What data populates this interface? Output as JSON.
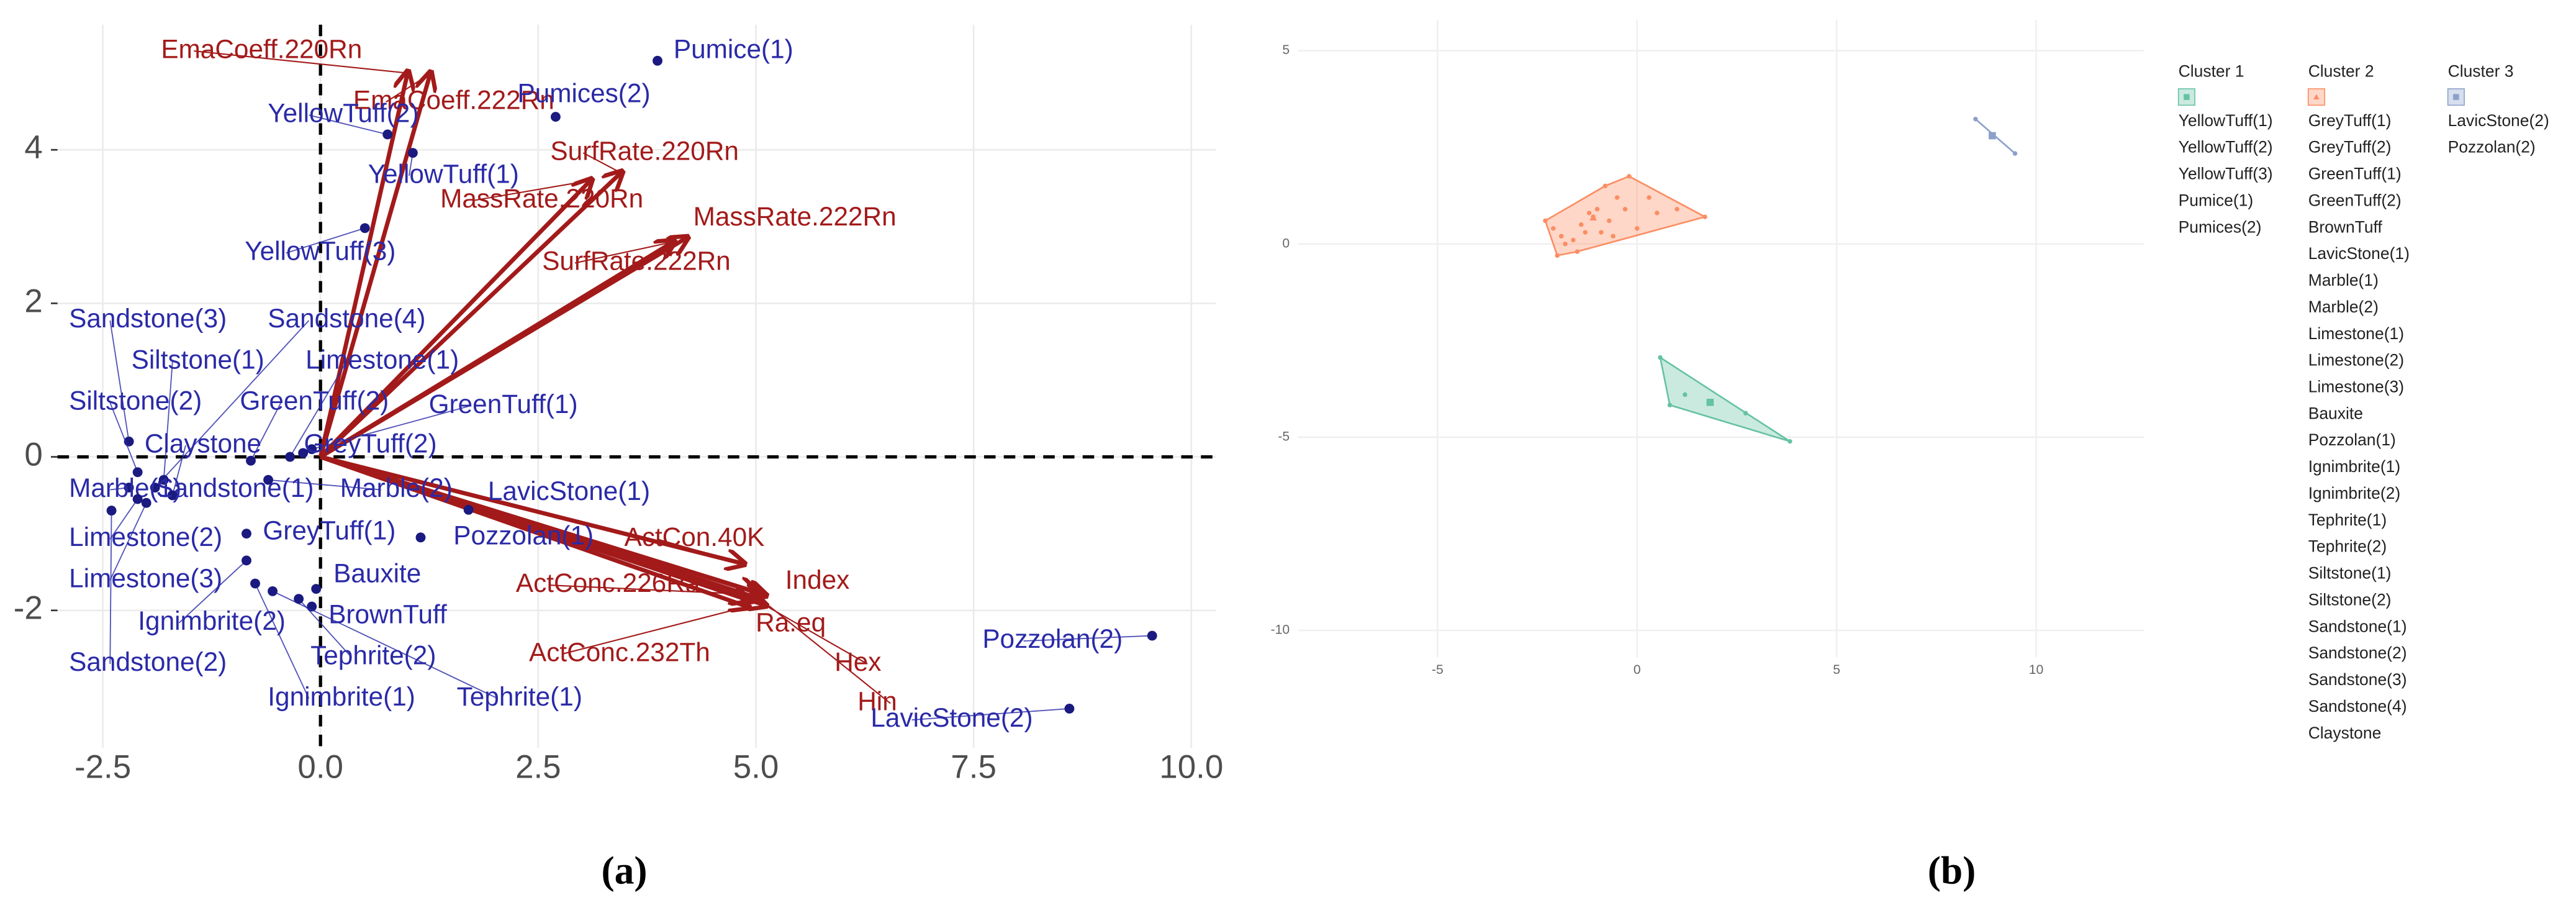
{
  "chart_data": [
    {
      "type": "biplot",
      "panel_label": "(a)",
      "xlim": [
        -3.02,
        10.28
      ],
      "ylim": [
        -3.79,
        5.63
      ],
      "xticks": [
        -2.5,
        {
          "value": 0,
          "label": "0.0"
        },
        2.5,
        {
          "value": 5,
          "label": "5.0"
        },
        7.5,
        {
          "value": 10,
          "label": "10.0"
        }
      ],
      "yticks": [
        -2,
        0,
        2,
        4
      ],
      "grid": true,
      "points": {
        "color": "#1a1a80",
        "label_color": "#2a2aa8",
        "names": [
          "Pumice(1)",
          "Pumices(2)",
          "YellowTuff(1)",
          "YellowTuff(2)",
          "YellowTuff(3)",
          "Sandstone(1)",
          "Sandstone(2)",
          "Sandstone(3)",
          "Sandstone(4)",
          "Siltstone(1)",
          "Siltstone(2)",
          "Claystone",
          "Marble(1)",
          "Marble(2)",
          "Limestone(1)",
          "Limestone(2)",
          "Limestone(3)",
          "GreenTuff(1)",
          "GreenTuff(2)",
          "GreyTuff(1)",
          "GreyTuff(2)",
          "LavicStone(1)",
          "LavicStone(2)",
          "Pozzolan(1)",
          "Pozzolan(2)",
          "Bauxite",
          "BrownTuff",
          "Ignimbrite(1)",
          "Ignimbrite(2)",
          "Tephrite(1)",
          "Tephrite(2)"
        ],
        "x": [
          3.87,
          2.7,
          1.06,
          0.77,
          0.51,
          -1.7,
          -2.4,
          -2.2,
          -1.9,
          -1.8,
          -2.1,
          -1.7,
          -2.2,
          -0.6,
          -0.35,
          -2.1,
          -2.0,
          -0.1,
          -0.8,
          -0.85,
          -0.2,
          1.7,
          8.6,
          1.15,
          9.55,
          -0.05,
          -0.1,
          -0.75,
          -0.85,
          -0.55,
          -0.25
        ],
        "y": [
          5.16,
          4.43,
          3.96,
          4.2,
          2.98,
          -0.5,
          -0.7,
          0.2,
          -0.4,
          -0.3,
          -0.2,
          -0.5,
          -0.4,
          -0.3,
          0.0,
          -0.55,
          -0.6,
          0.1,
          -0.05,
          -1.0,
          0.05,
          -0.69,
          -3.28,
          -1.05,
          -2.33,
          -1.72,
          -1.95,
          -1.65,
          -1.35,
          -1.75,
          -1.85
        ]
      },
      "arrows": {
        "color": "#a31a1a",
        "names": [
          "EmaCoeff.220Rn",
          "EmaCoeff.222Rn",
          "SurfRate.220Rn",
          "MassRate.220Rn",
          "MassRate.222Rn",
          "SurfRate.222Rn",
          "ActCon.40K",
          "ActConc.226Ra",
          "Index",
          "Ra.eq",
          "Hex",
          "Hin",
          "ActConc.232Th"
        ],
        "x": [
          1.0,
          1.26,
          3.45,
          3.1,
          4.2,
          4.05,
          4.85,
          5.1,
          5.0,
          4.9,
          5.1,
          5.05,
          4.9
        ],
        "y": [
          5.0,
          4.99,
          3.7,
          3.6,
          2.85,
          2.8,
          -1.39,
          -1.8,
          -1.76,
          -1.86,
          -1.93,
          -1.85,
          -1.95
        ]
      }
    },
    {
      "type": "cluster",
      "panel_label": "(b)",
      "xlim": [
        -8.5,
        12.7
      ],
      "ylim": [
        -10.7,
        5.8
      ],
      "xticks": [
        -5,
        0,
        5,
        10
      ],
      "yticks": [
        -10,
        -5,
        0,
        5
      ],
      "grid": true,
      "series": [
        {
          "name": "Cluster 1",
          "color": "#66c2a5",
          "members": [
            "YellowTuff(1)",
            "YellowTuff(2)",
            "YellowTuff(3)",
            "Pumice(1)",
            "Pumices(2)"
          ],
          "x": [
            0.58,
            0.82,
            3.83,
            2.72,
            1.2
          ],
          "y": [
            -2.94,
            -4.17,
            -5.11,
            -4.38,
            -3.9
          ],
          "center": [
            1.83,
            -4.1
          ]
        },
        {
          "name": "Cluster 2",
          "color": "#fc8d62",
          "members": [
            "GreyTuff(1)",
            "GreyTuff(2)",
            "GreenTuff(1)",
            "GreenTuff(2)",
            "BrownTuff",
            "LavicStone(1)",
            "Marble(1)",
            "Marble(2)",
            "Limestone(1)",
            "Limestone(2)",
            "Limestone(3)",
            "Bauxite",
            "Pozzolan(1)",
            "Ignimbrite(1)",
            "Ignimbrite(2)",
            "Tephrite(1)",
            "Tephrite(2)",
            "Siltstone(1)",
            "Siltstone(2)",
            "Sandstone(1)",
            "Sandstone(2)",
            "Sandstone(3)",
            "Sandstone(4)",
            "Claystone"
          ],
          "x": [
            -2.3,
            -2.1,
            -1.9,
            -2.0,
            -1.6,
            -1.4,
            -1.2,
            -1.0,
            -0.9,
            -0.7,
            -0.5,
            -0.2,
            -0.3,
            0.0,
            0.3,
            0.5,
            1.0,
            1.7,
            -1.5,
            -0.8,
            -1.1,
            -1.3,
            -1.8,
            -0.6
          ],
          "y": [
            0.6,
            0.4,
            0.2,
            -0.3,
            0.1,
            0.5,
            0.8,
            0.9,
            0.3,
            0.6,
            1.2,
            1.75,
            0.9,
            0.4,
            1.2,
            0.8,
            0.9,
            0.7,
            -0.2,
            1.5,
            0.7,
            0.3,
            0.0,
            0.2
          ],
          "center": [
            -1.1,
            0.68
          ]
        },
        {
          "name": "Cluster 3",
          "color": "#8da0cb",
          "members": [
            "LavicStone(2)",
            "Pozzolan(2)"
          ],
          "x": [
            8.48,
            9.47
          ],
          "y": [
            3.23,
            2.34
          ],
          "center": [
            8.9,
            2.8
          ]
        }
      ]
    }
  ]
}
